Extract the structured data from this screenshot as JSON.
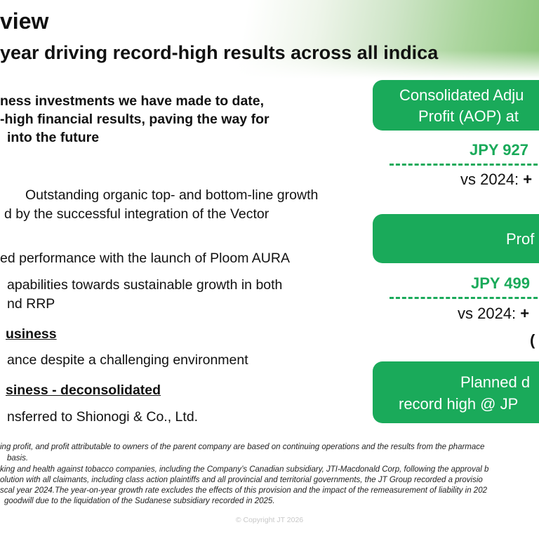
{
  "header": {
    "title": "view",
    "subtitle": "year driving record-high results across all indica"
  },
  "left": {
    "lead_lines": [
      "ness investments we have made to date,",
      "-high financial results, paving the way for",
      "into the future"
    ],
    "bullets": [
      [
        "Outstanding organic top- and bottom-line growth",
        "d by the successful integration of the Vector"
      ],
      [
        "ed performance with the launch of Ploom AURA"
      ],
      [
        "apabilities towards sustainable growth in both",
        "nd RRP"
      ],
      [
        "ance despite a challenging environment"
      ],
      [
        "nsferred to Shionogi & Co., Ltd."
      ]
    ],
    "sections": [
      "usiness",
      "siness - deconsolidated"
    ]
  },
  "right": {
    "card1": {
      "line1": "Consolidated Adju",
      "line2": "Profit (AOP) at"
    },
    "value1": "JPY 927",
    "vs1_prefix": "vs 2024: ",
    "vs1_bold": "+",
    "card2": {
      "line1": "Prof"
    },
    "value2": "JPY 499",
    "vs2_prefix": "vs 2024: ",
    "vs2_bold": "+",
    "paren": "(",
    "card3": {
      "line1": "Planned d",
      "line2": "record high @ JP"
    }
  },
  "footnotes": [
    "ing profit, and profit attributable to owners of the parent company are based on continuing operations and the results from the pharmace",
    "basis.",
    "king and health against tobacco companies, including the Company’s Canadian subsidiary, JTI-Macdonald Corp, following the approval b",
    "olution with all claimants, including class action plaintiffs and all provincial and territorial governments, the JT Group recorded a provisio",
    "scal year 2024.The year-on-year growth rate excludes the effects of this provision and the impact of the remeasurement of liability in 202",
    "goodwill due to the liquidation of the Sudanese subsidiary recorded in 2025."
  ],
  "copyright": "© Copyright JT 2026",
  "colors": {
    "accent": "#1aaa5a"
  }
}
